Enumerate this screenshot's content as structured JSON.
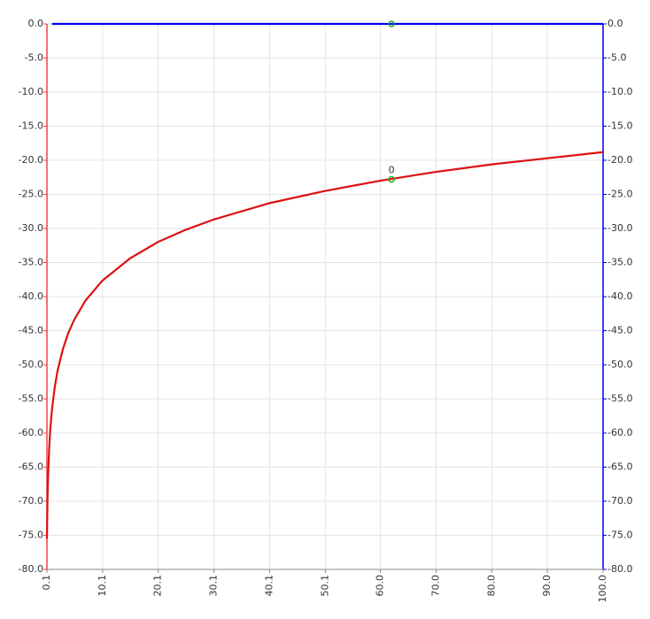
{
  "chart_data": {
    "type": "line",
    "series": [
      {
        "color": "#dd1111",
        "x": [
          0.1,
          0.2,
          0.3,
          0.5,
          0.7,
          1,
          1.5,
          2,
          3,
          4,
          5,
          7,
          10,
          15,
          20,
          25,
          30,
          40,
          50,
          60,
          70,
          80,
          90,
          100
        ],
        "values": [
          -75.5,
          -69.8,
          -66.5,
          -62.3,
          -59.5,
          -56.6,
          -53.3,
          -50.9,
          -47.6,
          -45.2,
          -43.4,
          -40.6,
          -37.7,
          -34.4,
          -32.0,
          -30.2,
          -28.7,
          -26.3,
          -24.5,
          -23.0,
          -21.7,
          -20.6,
          -19.7,
          -18.8
        ]
      },
      {
        "color": "#0000ee",
        "axis": "y2",
        "x": [
          1,
          100
        ],
        "values": [
          0,
          0
        ]
      }
    ],
    "markers": [
      {
        "x": 62,
        "y": -22.8,
        "label": "0",
        "color": "#22aa22"
      },
      {
        "x": 62,
        "y": 0,
        "color": "#22aa22"
      }
    ],
    "xlim": [
      0.1,
      100
    ],
    "xticks": [
      0.1,
      10.1,
      20.1,
      30.1,
      40.1,
      50.1,
      {
        "value": 60,
        "label": "60.0"
      },
      {
        "value": 70,
        "label": "70.0"
      },
      {
        "value": 80,
        "label": "80.0"
      },
      {
        "value": 90,
        "label": "90.0"
      },
      {
        "value": 100,
        "label": "100.0"
      }
    ],
    "ylim": [
      -80,
      0
    ],
    "yticks": [
      {
        "value": 0,
        "label": "0.0"
      },
      {
        "value": -5,
        "label": "-5.0"
      },
      {
        "value": -10,
        "label": "-10.0"
      },
      {
        "value": -15,
        "label": "-15.0"
      },
      {
        "value": -20,
        "label": "-20.0"
      },
      {
        "value": -25,
        "label": "-25.0"
      },
      {
        "value": -30,
        "label": "-30.0"
      },
      {
        "value": -35,
        "label": "-35.0"
      },
      {
        "value": -40,
        "label": "-40.0"
      },
      {
        "value": -45,
        "label": "-45.0"
      },
      {
        "value": -50,
        "label": "-50.0"
      },
      {
        "value": -55,
        "label": "-55.0"
      },
      {
        "value": -60,
        "label": "-60.0"
      },
      {
        "value": -65,
        "label": "-65.0"
      },
      {
        "value": -70,
        "label": "-70.0"
      },
      {
        "value": -75,
        "label": "-75.0"
      },
      {
        "value": -80,
        "label": "-80.0"
      }
    ],
    "y2lim": [
      -80,
      0
    ],
    "y2ticks": [
      {
        "value": 0,
        "label": "0.0"
      },
      {
        "value": -5,
        "label": "-5.0"
      },
      {
        "value": -10,
        "label": "-10.0"
      },
      {
        "value": -15,
        "label": "-15.0"
      },
      {
        "value": -20,
        "label": "-20.0"
      },
      {
        "value": -25,
        "label": "-25.0"
      },
      {
        "value": -30,
        "label": "-30.0"
      },
      {
        "value": -35,
        "label": "-35.0"
      },
      {
        "value": -40,
        "label": "-40.0"
      },
      {
        "value": -45,
        "label": "-45.0"
      },
      {
        "value": -50,
        "label": "-50.0"
      },
      {
        "value": -55,
        "label": "-55.0"
      },
      {
        "value": -60,
        "label": "-60.0"
      },
      {
        "value": -65,
        "label": "-65.0"
      },
      {
        "value": -70,
        "label": "-70.0"
      },
      {
        "value": -75,
        "label": "-75.0"
      },
      {
        "value": -80,
        "label": "-80.0"
      }
    ],
    "grid": true,
    "y_axis_color": "#ee4444",
    "y2_axis_color": "#0000ee"
  }
}
